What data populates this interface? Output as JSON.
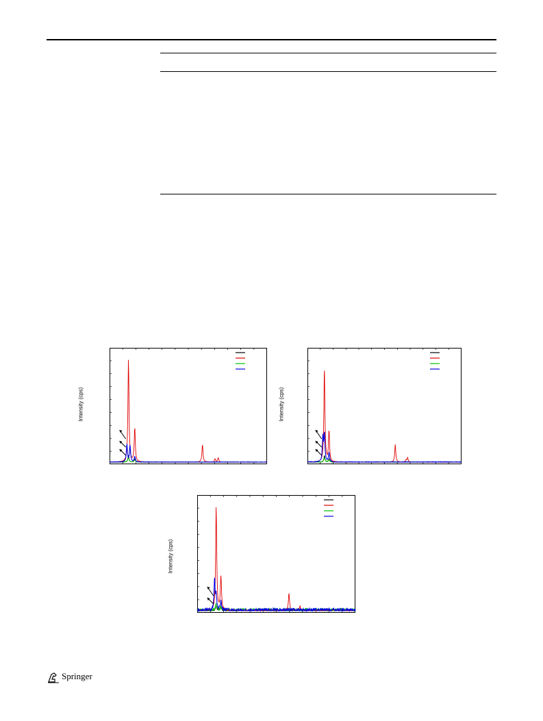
{
  "footer": {
    "publisher": "Springer",
    "logo_icon": "springer-horse-icon"
  },
  "colors": {
    "black": "#000000",
    "red": "#e00000",
    "green": "#00c000",
    "blue": "#0000e0"
  },
  "chart_data": [
    {
      "type": "line",
      "ylabel": "Intensity (cps)",
      "series": [
        {
          "color": "#000000"
        },
        {
          "color": "#e00000"
        },
        {
          "color": "#00c000"
        },
        {
          "color": "#0000e0"
        }
      ],
      "peaks": {
        "red": [
          [
            0.12,
            0.93
          ],
          [
            0.16,
            0.31
          ],
          [
            0.59,
            0.16
          ],
          [
            0.67,
            0.03
          ],
          [
            0.69,
            0.04
          ]
        ],
        "blue": [
          [
            0.11,
            0.16
          ],
          [
            0.13,
            0.15
          ],
          [
            0.16,
            0.05
          ]
        ],
        "green": [
          [
            0.12,
            0.04
          ],
          [
            0.16,
            0.02
          ]
        ],
        "black": [
          [
            0.12,
            0.06
          ],
          [
            0.16,
            0.03
          ]
        ]
      },
      "noise": 0.003,
      "arrows": 3
    },
    {
      "type": "line",
      "ylabel": "Intensity (cps)",
      "series": [
        {
          "color": "#000000"
        },
        {
          "color": "#e00000"
        },
        {
          "color": "#00c000"
        },
        {
          "color": "#0000e0"
        }
      ],
      "peaks": {
        "red": [
          [
            0.11,
            0.86
          ],
          [
            0.14,
            0.28
          ],
          [
            0.57,
            0.16
          ],
          [
            0.64,
            0.02
          ],
          [
            0.65,
            0.04
          ]
        ],
        "blue": [
          [
            0.1,
            0.22
          ],
          [
            0.11,
            0.25
          ],
          [
            0.14,
            0.08
          ]
        ],
        "green": [
          [
            0.11,
            0.04
          ],
          [
            0.14,
            0.02
          ]
        ],
        "black": [
          [
            0.11,
            0.06
          ],
          [
            0.14,
            0.03
          ]
        ]
      },
      "noise": 0.004,
      "arrows": 3
    },
    {
      "type": "line",
      "ylabel": "Intensity (cps)",
      "series": [
        {
          "color": "#000000"
        },
        {
          "color": "#e00000"
        },
        {
          "color": "#00c000"
        },
        {
          "color": "#0000e0"
        }
      ],
      "peaks": {
        "red": [
          [
            0.12,
            0.92
          ],
          [
            0.15,
            0.3
          ],
          [
            0.58,
            0.16
          ],
          [
            0.65,
            0.04
          ]
        ],
        "blue": [
          [
            0.11,
            0.27
          ],
          [
            0.12,
            0.12
          ],
          [
            0.15,
            0.08
          ]
        ],
        "green": [
          [
            0.12,
            0.05
          ],
          [
            0.15,
            0.03
          ]
        ],
        "black": [
          [
            0.12,
            0.05
          ],
          [
            0.15,
            0.03
          ]
        ]
      },
      "noise": 0.02,
      "arrows": 2
    }
  ]
}
